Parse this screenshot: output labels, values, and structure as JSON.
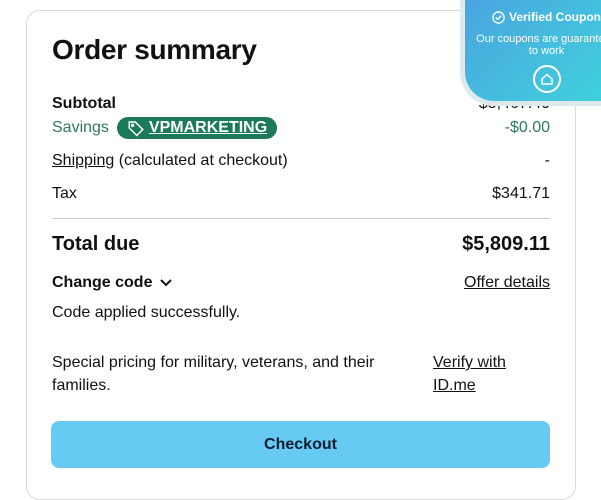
{
  "title": "Order summary",
  "subtotal": {
    "label": "Subtotal",
    "value": "$5,467.40"
  },
  "savings": {
    "label": "Savings",
    "code": "VPMARKETING",
    "value": "-$0.00"
  },
  "shipping": {
    "link": "Shipping",
    "note": " (calculated at checkout)",
    "value": "-"
  },
  "tax": {
    "label": "Tax",
    "value": "$341.71"
  },
  "total": {
    "label": "Total due",
    "value": "$5,809.11"
  },
  "change_code": "Change code",
  "offer_details": "Offer details",
  "status": "Code applied successfully.",
  "special": {
    "text": "Special pricing for military, veterans, and their families.",
    "link": "Verify with ID.me"
  },
  "checkout_label": "Checkout",
  "overlay": {
    "title": "Verified Coupon",
    "text": "Our coupons are guaranteed to work"
  },
  "colors": {
    "accent": "#66caf2",
    "savings": "#1a7a5a"
  }
}
